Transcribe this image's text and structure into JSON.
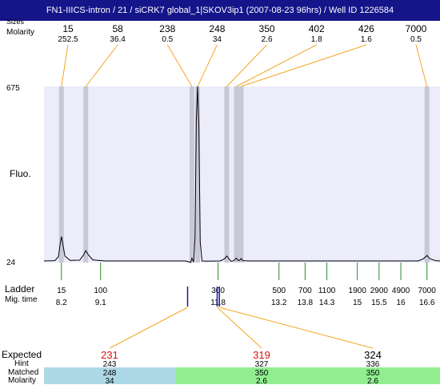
{
  "title": "FN1-IIICS-intron / 21 / siCRK7 global_1|SKOV3ip1 (2007-08-23 96hrs) / Well ID 1226584",
  "header": {
    "sizes_label": "Sizes",
    "molarity_label": "Molarity"
  },
  "labels": {
    "fluo": "Fluo.",
    "ladder": "Ladder",
    "mig_time": "Mig. time",
    "expected": "Expected",
    "hint": "Hint",
    "matched": "Matched",
    "molarity": "Molarity"
  },
  "colors": {
    "title_bg": "#15158a",
    "plot_bg": "#ececfb",
    "peak_band": "#c8c8d8",
    "connector": "#f5a623",
    "ladder_tick": "#2a8a2a",
    "expected_red": "#dd1111",
    "bar_blue": "#add8e6",
    "bar_green": "#90ee90"
  },
  "chart_data": {
    "type": "line",
    "y_axis": {
      "max_label": "675",
      "min_label": "24",
      "ylim": [
        24,
        675
      ]
    },
    "x_axis_mig_time_range": [
      7.8,
      16.9
    ],
    "peaks": [
      {
        "size": "15",
        "molarity": "252.5",
        "mig_time": 8.2
      },
      {
        "size": "58",
        "molarity": "36.4",
        "mig_time": 8.76
      },
      {
        "size": "238",
        "molarity": "0.5",
        "mig_time": 11.2
      },
      {
        "size": "248",
        "molarity": "34",
        "mig_time": 11.33
      },
      {
        "size": "350",
        "molarity": "2.6",
        "mig_time": 12.0
      },
      {
        "size": "402",
        "molarity": "1.8",
        "mig_time": 12.22
      },
      {
        "size": "426",
        "molarity": "1.6",
        "mig_time": 12.33
      },
      {
        "size": "7000",
        "molarity": "0.5",
        "mig_time": 16.6
      }
    ],
    "ladder": [
      {
        "size": "15",
        "mig_time": "8.2"
      },
      {
        "size": "100",
        "mig_time": "9.1"
      },
      {
        "size": "300",
        "mig_time": "11.8"
      },
      {
        "size": "500",
        "mig_time": "13.2"
      },
      {
        "size": "700",
        "mig_time": "13.8"
      },
      {
        "size": "1100",
        "mig_time": "14.3"
      },
      {
        "size": "1900",
        "mig_time": "15"
      },
      {
        "size": "2900",
        "mig_time": "15.5"
      },
      {
        "size": "4900",
        "mig_time": "16"
      },
      {
        "size": "7000",
        "mig_time": "16.6"
      }
    ],
    "trace": [
      [
        7.8,
        30
      ],
      [
        8.05,
        31
      ],
      [
        8.13,
        45
      ],
      [
        8.17,
        90
      ],
      [
        8.2,
        120
      ],
      [
        8.23,
        95
      ],
      [
        8.28,
        48
      ],
      [
        8.4,
        32
      ],
      [
        8.62,
        33
      ],
      [
        8.7,
        50
      ],
      [
        8.76,
        68
      ],
      [
        8.82,
        52
      ],
      [
        8.92,
        34
      ],
      [
        9.2,
        30
      ],
      [
        10.6,
        30
      ],
      [
        11.05,
        30
      ],
      [
        11.12,
        27
      ],
      [
        11.17,
        24
      ],
      [
        11.2,
        40
      ],
      [
        11.24,
        26
      ],
      [
        11.27,
        120
      ],
      [
        11.3,
        550
      ],
      [
        11.33,
        675
      ],
      [
        11.36,
        520
      ],
      [
        11.39,
        100
      ],
      [
        11.43,
        30
      ],
      [
        11.55,
        29
      ],
      [
        11.85,
        30
      ],
      [
        11.95,
        38
      ],
      [
        12.0,
        48
      ],
      [
        12.05,
        38
      ],
      [
        12.1,
        28
      ],
      [
        12.16,
        31
      ],
      [
        12.22,
        40
      ],
      [
        12.26,
        32
      ],
      [
        12.3,
        33
      ],
      [
        12.33,
        39
      ],
      [
        12.37,
        31
      ],
      [
        12.5,
        30
      ],
      [
        16.4,
        30
      ],
      [
        16.52,
        38
      ],
      [
        16.6,
        50
      ],
      [
        16.67,
        38
      ],
      [
        16.8,
        31
      ],
      [
        16.9,
        30
      ]
    ],
    "expected": [
      {
        "value": "231",
        "hint": "243",
        "matched": "248",
        "molarity": "34",
        "mig_time": 11.1,
        "peak_index": 3
      },
      {
        "value": "319",
        "hint": "327",
        "matched": "350",
        "molarity": "2.6",
        "mig_time": 11.78,
        "peak_index": 4
      },
      {
        "value": "324",
        "hint": "336",
        "matched": "350",
        "molarity": "2.6",
        "mig_time": 11.83,
        "peak_index": 4
      }
    ]
  }
}
